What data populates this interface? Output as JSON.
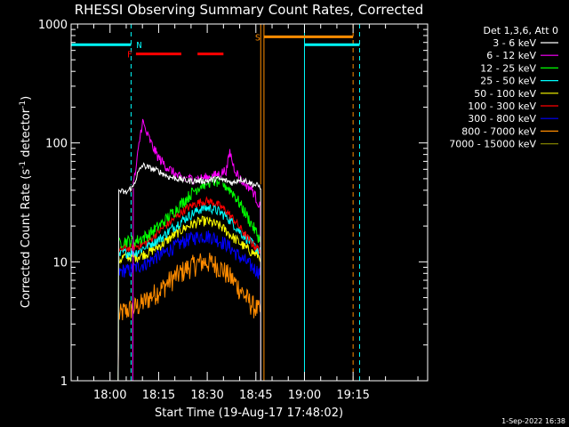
{
  "chart_data": {
    "type": "line",
    "title": "RHESSI Observing Summary Count Rates, Corrected",
    "xlabel": "Start Time (19-Aug-17 17:48:02)",
    "ylabel": "Corrected Count Rate (s⁻¹ detector⁻¹)",
    "ylabel_parts": {
      "main": "Corrected Count Rate (s",
      "sup1": "-1",
      "mid": " detector",
      "sup2": "-1",
      "end": ")"
    },
    "yscale": "log",
    "ylim": [
      1,
      1000
    ],
    "xlim_minutes": [
      -12,
      98
    ],
    "yticks": [
      {
        "value": 1,
        "label": "1"
      },
      {
        "value": 10,
        "label": "10"
      },
      {
        "value": 100,
        "label": "100"
      },
      {
        "value": 1000,
        "label": "1000"
      }
    ],
    "xticks": [
      {
        "minute": 0,
        "label": "18:00"
      },
      {
        "minute": 15,
        "label": "18:15"
      },
      {
        "minute": 30,
        "label": "18:30"
      },
      {
        "minute": 45,
        "label": "18:45"
      },
      {
        "minute": 60,
        "label": "19:00"
      },
      {
        "minute": 75,
        "label": "19:15"
      }
    ],
    "legend_title": "Det 1,3,6, Att 0",
    "legend_position": "right",
    "series": [
      {
        "name": "3 - 6 keV",
        "color": "#000000",
        "flat": false,
        "points": [
          [
            2.5,
            40
          ],
          [
            5,
            38
          ],
          [
            6.5,
            42
          ],
          [
            7,
            42
          ],
          [
            8.5,
            55
          ],
          [
            10,
            65
          ],
          [
            12,
            62
          ],
          [
            15,
            58
          ],
          [
            18,
            52
          ],
          [
            21,
            50
          ],
          [
            24,
            48
          ],
          [
            27,
            48
          ],
          [
            30,
            48
          ],
          [
            33,
            50
          ],
          [
            36,
            48
          ],
          [
            38,
            46
          ],
          [
            40,
            50
          ],
          [
            42,
            48
          ],
          [
            44,
            45
          ],
          [
            46.5,
            43
          ]
        ]
      },
      {
        "name": "6 - 12 keV",
        "color": "#ff00ff",
        "flat": false,
        "points": [
          [
            7,
            42
          ],
          [
            8,
            60
          ],
          [
            9,
            100
          ],
          [
            10,
            155
          ],
          [
            11,
            125
          ],
          [
            12,
            110
          ],
          [
            13,
            95
          ],
          [
            15,
            75
          ],
          [
            17,
            65
          ],
          [
            19,
            58
          ],
          [
            21,
            52
          ],
          [
            23,
            50
          ],
          [
            25,
            50
          ],
          [
            28,
            50
          ],
          [
            31,
            52
          ],
          [
            34,
            55
          ],
          [
            36,
            60
          ],
          [
            37,
            85
          ],
          [
            38,
            65
          ],
          [
            40,
            50
          ],
          [
            42,
            45
          ],
          [
            44,
            40
          ],
          [
            46.5,
            28
          ]
        ]
      },
      {
        "name": "12 - 25 keV",
        "color": "#00ff00",
        "flat": false,
        "points": [
          [
            2.5,
            14
          ],
          [
            4,
            15
          ],
          [
            6,
            15
          ],
          [
            8,
            15
          ],
          [
            10,
            16
          ],
          [
            12,
            17
          ],
          [
            14,
            19
          ],
          [
            16,
            21
          ],
          [
            18,
            24
          ],
          [
            20,
            27
          ],
          [
            22,
            31
          ],
          [
            24,
            35
          ],
          [
            26,
            40
          ],
          [
            28,
            44
          ],
          [
            30,
            47
          ],
          [
            32,
            48
          ],
          [
            34,
            47
          ],
          [
            36,
            43
          ],
          [
            38,
            38
          ],
          [
            40,
            31
          ],
          [
            42,
            25
          ],
          [
            44,
            20
          ],
          [
            46.5,
            15
          ]
        ]
      },
      {
        "name": "25 - 50 keV",
        "color": "#00ffff",
        "flat": false,
        "points": [
          [
            2.5,
            11
          ],
          [
            4,
            12
          ],
          [
            6,
            12
          ],
          [
            8,
            12
          ],
          [
            10,
            13
          ],
          [
            12,
            14
          ],
          [
            14,
            15
          ],
          [
            16,
            16
          ],
          [
            18,
            18
          ],
          [
            20,
            20
          ],
          [
            22,
            22
          ],
          [
            24,
            24
          ],
          [
            26,
            26
          ],
          [
            28,
            28
          ],
          [
            30,
            28.5
          ],
          [
            32,
            28
          ],
          [
            34,
            26
          ],
          [
            36,
            24
          ],
          [
            38,
            21
          ],
          [
            40,
            18
          ],
          [
            42,
            16
          ],
          [
            44,
            14
          ],
          [
            46.5,
            12
          ]
        ]
      },
      {
        "name": "50 - 100 keV",
        "color": "#ffff00",
        "flat": false,
        "points": [
          [
            2.5,
            10
          ],
          [
            4,
            11
          ],
          [
            6,
            11
          ],
          [
            8,
            11
          ],
          [
            10,
            11.5
          ],
          [
            12,
            12
          ],
          [
            14,
            13
          ],
          [
            16,
            14
          ],
          [
            18,
            15.5
          ],
          [
            20,
            17
          ],
          [
            22,
            18.5
          ],
          [
            24,
            20
          ],
          [
            26,
            21
          ],
          [
            28,
            22
          ],
          [
            30,
            22
          ],
          [
            32,
            21
          ],
          [
            34,
            20
          ],
          [
            36,
            18
          ],
          [
            38,
            16
          ],
          [
            40,
            14.5
          ],
          [
            42,
            13
          ],
          [
            44,
            12
          ],
          [
            46.5,
            11
          ]
        ]
      },
      {
        "name": "100 - 300 keV",
        "color": "#ff0000",
        "flat": false,
        "points": [
          [
            2.5,
            12
          ],
          [
            4,
            13
          ],
          [
            6,
            13
          ],
          [
            8,
            13.5
          ],
          [
            10,
            14
          ],
          [
            12,
            15
          ],
          [
            14,
            17
          ],
          [
            16,
            19
          ],
          [
            18,
            21
          ],
          [
            20,
            23.5
          ],
          [
            22,
            26
          ],
          [
            24,
            28.5
          ],
          [
            26,
            30.5
          ],
          [
            28,
            32
          ],
          [
            30,
            32.5
          ],
          [
            32,
            31.5
          ],
          [
            34,
            29.5
          ],
          [
            36,
            26.5
          ],
          [
            38,
            23
          ],
          [
            40,
            19.5
          ],
          [
            42,
            16.5
          ],
          [
            44,
            14
          ],
          [
            46.5,
            12.5
          ]
        ]
      },
      {
        "name": "300 - 800 keV",
        "color": "#0000ff",
        "flat": false,
        "points": [
          [
            2.5,
            8
          ],
          [
            4,
            8.5
          ],
          [
            6,
            8.5
          ],
          [
            8,
            9
          ],
          [
            10,
            9.5
          ],
          [
            12,
            10
          ],
          [
            14,
            11
          ],
          [
            16,
            11.5
          ],
          [
            18,
            12.5
          ],
          [
            20,
            13.5
          ],
          [
            22,
            14.5
          ],
          [
            24,
            15.5
          ],
          [
            26,
            16
          ],
          [
            28,
            16.5
          ],
          [
            30,
            16.5
          ],
          [
            32,
            16
          ],
          [
            34,
            15
          ],
          [
            36,
            14
          ],
          [
            38,
            12.5
          ],
          [
            40,
            11
          ],
          [
            42,
            10
          ],
          [
            44,
            9
          ],
          [
            46.5,
            8
          ]
        ]
      },
      {
        "name": "800 - 7000 keV",
        "color": "#ff8c00",
        "flat": false,
        "points": [
          [
            2.5,
            3.5
          ],
          [
            4,
            3.8
          ],
          [
            6,
            4
          ],
          [
            8,
            4.2
          ],
          [
            10,
            4.5
          ],
          [
            12,
            5
          ],
          [
            14,
            5.5
          ],
          [
            16,
            6
          ],
          [
            18,
            6.8
          ],
          [
            20,
            7.5
          ],
          [
            22,
            8.2
          ],
          [
            24,
            9
          ],
          [
            26,
            9.5
          ],
          [
            28,
            10
          ],
          [
            30,
            10
          ],
          [
            32,
            9.7
          ],
          [
            34,
            9
          ],
          [
            36,
            8
          ],
          [
            38,
            7
          ],
          [
            40,
            6
          ],
          [
            42,
            5
          ],
          [
            44,
            4.3
          ],
          [
            46.5,
            3.8
          ]
        ]
      },
      {
        "name": "7000 - 15000 keV",
        "color": "#808000",
        "flat": true,
        "points": []
      }
    ],
    "annotations": {
      "night_letter": "N",
      "flare_letter": "F",
      "saa_letter": "S",
      "night_bars": [
        [
          -12,
          6.5
        ],
        [
          60,
          77
        ]
      ],
      "night_level": 670,
      "flare_bars": [
        [
          8,
          22
        ],
        [
          27,
          35
        ]
      ],
      "flare_level": 560,
      "saa_bar": [
        47.5,
        75
      ],
      "saa_level": 780,
      "cyan_solid_lines": [
        -12,
        60
      ],
      "cyan_dashed_lines": [
        6.5,
        77
      ],
      "orange_solid_lines": [
        46.5,
        47.5
      ],
      "orange_dashed_lines": [
        75
      ],
      "colors": {
        "night": "#00ffff",
        "flare": "#ff0000",
        "saa": "#ff8c00"
      }
    }
  },
  "footer": "1-Sep-2022 16:38"
}
